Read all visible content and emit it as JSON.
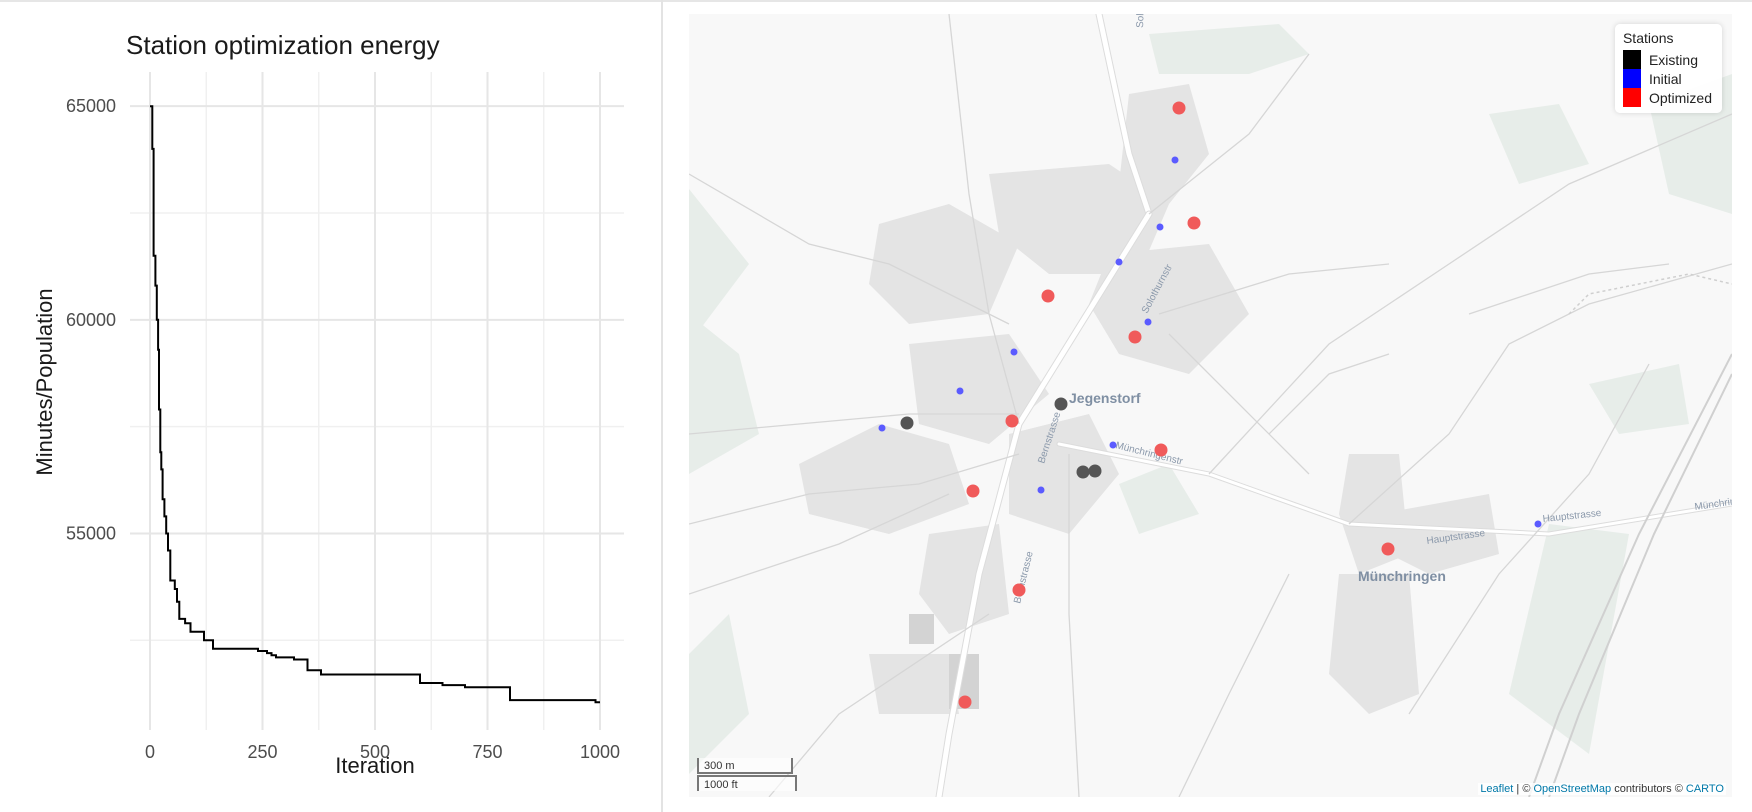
{
  "chart_data": {
    "type": "line",
    "title": "Station optimization energy",
    "xlabel": "Iteration",
    "ylabel": "Minutes/Population",
    "xlim": [
      0,
      1000
    ],
    "ylim": [
      50400,
      65800
    ],
    "xticks": [
      0,
      250,
      500,
      750,
      1000
    ],
    "yticks": [
      55000,
      60000,
      65000
    ],
    "grid": true,
    "x": [
      0,
      5,
      8,
      12,
      15,
      18,
      20,
      23,
      25,
      28,
      32,
      36,
      40,
      45,
      50,
      55,
      60,
      65,
      70,
      78,
      90,
      100,
      120,
      140,
      160,
      180,
      220,
      240,
      260,
      270,
      280,
      320,
      350,
      380,
      500,
      580,
      600,
      650,
      700,
      740,
      800,
      900,
      980,
      990,
      1000
    ],
    "y": [
      65000,
      64000,
      61500,
      60800,
      60000,
      59300,
      57900,
      56900,
      56500,
      55800,
      55400,
      55000,
      54600,
      53900,
      53900,
      53700,
      53400,
      53000,
      53000,
      52900,
      52700,
      52700,
      52500,
      52300,
      52300,
      52300,
      52300,
      52250,
      52200,
      52150,
      52100,
      52050,
      51800,
      51700,
      51700,
      51700,
      51500,
      51450,
      51400,
      51400,
      51100,
      51100,
      51100,
      51050,
      51050
    ]
  },
  "map": {
    "legend": {
      "title": "Stations",
      "items": [
        {
          "label": "Existing",
          "color": "#000000"
        },
        {
          "label": "Initial",
          "color": "#0000ff"
        },
        {
          "label": "Optimized",
          "color": "#ff0000"
        }
      ]
    },
    "place_labels": [
      "Jegenstorf",
      "Münchringen"
    ],
    "street_labels": [
      "Bernstrasse",
      "Bernstrasse",
      "Solothurnstr",
      "Münchringenstr",
      "Hauptstrasse",
      "Hauptstrasse",
      "Münchringenstr",
      "Solothurnstr"
    ],
    "scale": {
      "metric": "300 m",
      "imperial": "1000 ft"
    },
    "attribution": {
      "leaflet": "Leaflet",
      "sep": " | © ",
      "osm": "OpenStreetMap",
      "contributors": " contributors © ",
      "carto": "CARTO"
    }
  }
}
